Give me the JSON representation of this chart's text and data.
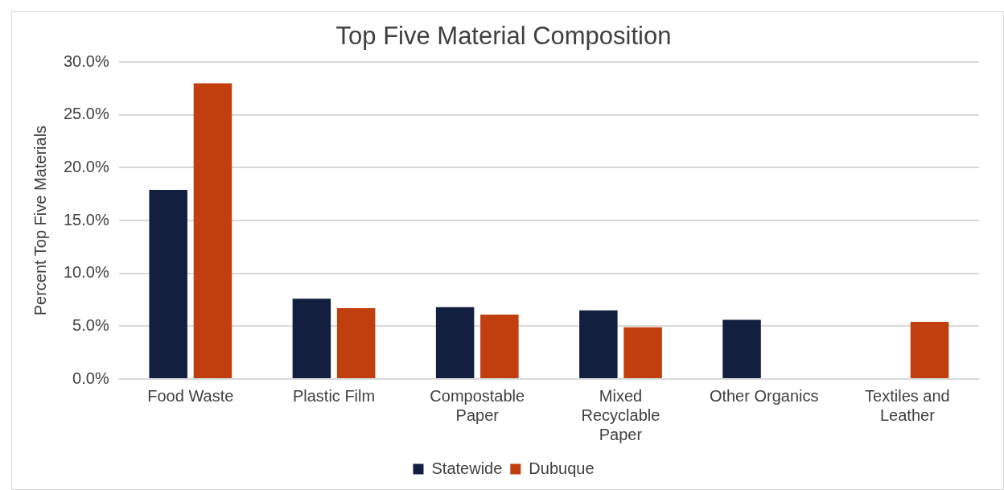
{
  "chart_data": {
    "type": "bar",
    "title": "Top Five Material Composition",
    "ylabel": "Percent Top Five Materials",
    "categories": [
      "Food Waste",
      "Plastic Film",
      "Compostable Paper",
      "Mixed Recyclable Paper",
      "Other Organics",
      "Textiles and Leather"
    ],
    "series": [
      {
        "name": "Statewide",
        "color": "#131f3f",
        "values": [
          17.9,
          7.6,
          6.8,
          6.5,
          5.6,
          null
        ]
      },
      {
        "name": "Dubuque",
        "color": "#c13e0e",
        "values": [
          28.0,
          6.7,
          6.1,
          4.9,
          null,
          5.4
        ]
      }
    ],
    "ylim": [
      0,
      30
    ],
    "yticks": [
      {
        "value": 0,
        "label": "0.0%"
      },
      {
        "value": 5,
        "label": "5.0%"
      },
      {
        "value": 10,
        "label": "10.0%"
      },
      {
        "value": 15,
        "label": "15.0%"
      },
      {
        "value": 20,
        "label": "20.0%"
      },
      {
        "value": 25,
        "label": "25.0%"
      },
      {
        "value": 30,
        "label": "30.0%"
      }
    ],
    "grid": "y",
    "legend": "bottom"
  }
}
